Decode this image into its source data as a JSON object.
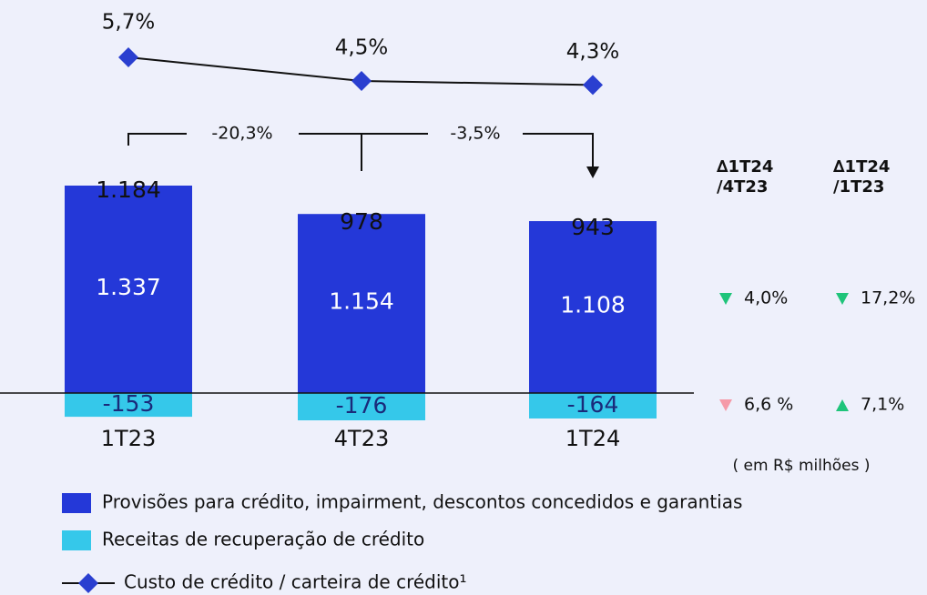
{
  "chart_data": {
    "type": "bar",
    "categories": [
      "1T23",
      "4T23",
      "1T24"
    ],
    "series": [
      {
        "name": "Provisões para crédito, impairment, descontos concedidos e garantias",
        "color": "#2438d8",
        "values": [
          1337,
          1154,
          1108
        ],
        "value_labels": [
          "1.337",
          "1.154",
          "1.108"
        ]
      },
      {
        "name": "Receitas de recuperação de crédito",
        "color": "#35c8ea",
        "values": [
          -153,
          -176,
          -164
        ],
        "value_labels": [
          "-153",
          "-176",
          "-164"
        ]
      }
    ],
    "totals": {
      "values": [
        1184,
        978,
        943
      ],
      "value_labels": [
        "1.184",
        "978",
        "943"
      ]
    },
    "line": {
      "type": "line",
      "name": "Custo de crédito / carteira de crédito¹",
      "color": "#2a3fd0",
      "values": [
        5.7,
        4.5,
        4.3
      ],
      "value_labels": [
        "5,7%",
        "4,5%",
        "4,3%"
      ]
    },
    "changes": [
      "-20,3%",
      "-3,5%"
    ],
    "comparison": {
      "headers": [
        [
          "∆1T24",
          "/4T23"
        ],
        [
          "∆1T24",
          "/1T23"
        ]
      ],
      "rows": [
        [
          {
            "text": "4,0%",
            "direction": "down",
            "color": "#1fc47a"
          },
          {
            "text": "17,2%",
            "direction": "down",
            "color": "#1fc47a"
          }
        ],
        [
          {
            "text": "6,6 %",
            "direction": "down",
            "color": "#f59aa8"
          },
          {
            "text": "7,1%",
            "direction": "up",
            "color": "#1fc47a"
          }
        ]
      ]
    },
    "unit_note": "( em R$ milhões )"
  }
}
